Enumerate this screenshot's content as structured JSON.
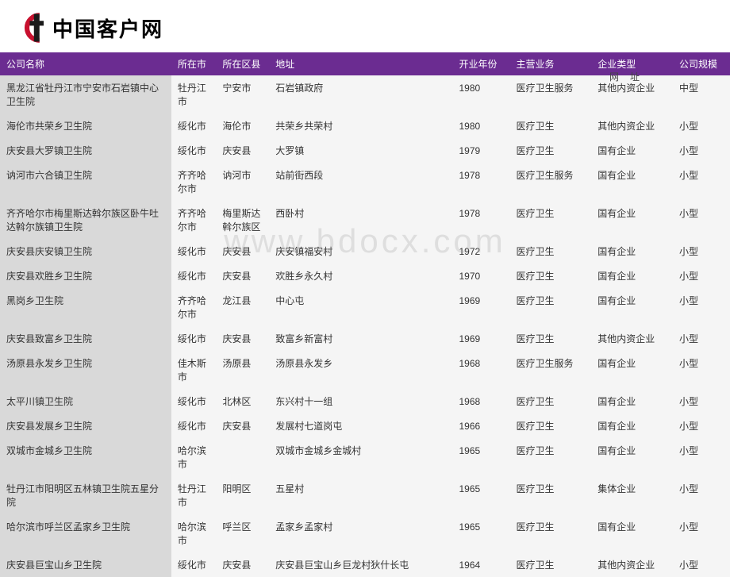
{
  "logo_text": "中国客户网",
  "url_label": "网址",
  "watermark": "www.bdocx.com",
  "columns": [
    {
      "key": "name",
      "label": "公司名称",
      "cls": "col-name"
    },
    {
      "key": "city",
      "label": "所在市",
      "cls": "col-city"
    },
    {
      "key": "district",
      "label": "所在区县",
      "cls": "col-district"
    },
    {
      "key": "addr",
      "label": "地址",
      "cls": "col-addr"
    },
    {
      "key": "year",
      "label": "开业年份",
      "cls": "col-year"
    },
    {
      "key": "biz",
      "label": "主营业务",
      "cls": "col-biz"
    },
    {
      "key": "type",
      "label": "企业类型",
      "cls": "col-type"
    },
    {
      "key": "scale",
      "label": "公司规模",
      "cls": "col-scale"
    }
  ],
  "rows": [
    {
      "name": "黑龙江省牡丹江市宁安市石岩镇中心卫生院",
      "city": "牡丹江市",
      "district": "宁安市",
      "addr": "石岩镇政府",
      "year": "1980",
      "biz": "医疗卫生服务",
      "type": "其他内资企业",
      "scale": "中型"
    },
    {
      "name": "海伦市共荣乡卫生院",
      "city": "绥化市",
      "district": "海伦市",
      "addr": "共荣乡共荣村",
      "year": "1980",
      "biz": "医疗卫生",
      "type": "其他内资企业",
      "scale": "小型"
    },
    {
      "name": "庆安县大罗镇卫生院",
      "city": "绥化市",
      "district": "庆安县",
      "addr": "大罗镇",
      "year": "1979",
      "biz": "医疗卫生",
      "type": "国有企业",
      "scale": "小型"
    },
    {
      "name": "讷河市六合镇卫生院",
      "city": "齐齐哈尔市",
      "district": "讷河市",
      "addr": "站前街西段",
      "year": "1978",
      "biz": "医疗卫生服务",
      "type": "国有企业",
      "scale": "小型"
    },
    {
      "name": "齐齐哈尔市梅里斯达斡尔族区卧牛吐达斡尔族镇卫生院",
      "city": "齐齐哈尔市",
      "district": "梅里斯达斡尔族区",
      "addr": "西卧村",
      "year": "1978",
      "biz": "医疗卫生",
      "type": "国有企业",
      "scale": "小型"
    },
    {
      "name": "庆安县庆安镇卫生院",
      "city": "绥化市",
      "district": "庆安县",
      "addr": "庆安镇福安村",
      "year": "1972",
      "biz": "医疗卫生",
      "type": "国有企业",
      "scale": "小型"
    },
    {
      "name": "庆安县欢胜乡卫生院",
      "city": "绥化市",
      "district": "庆安县",
      "addr": "欢胜乡永久村",
      "year": "1970",
      "biz": "医疗卫生",
      "type": "国有企业",
      "scale": "小型"
    },
    {
      "name": "黑岗乡卫生院",
      "city": "齐齐哈尔市",
      "district": "龙江县",
      "addr": "中心屯",
      "year": "1969",
      "biz": "医疗卫生",
      "type": "国有企业",
      "scale": "小型"
    },
    {
      "name": "庆安县致富乡卫生院",
      "city": "绥化市",
      "district": "庆安县",
      "addr": "致富乡新富村",
      "year": "1969",
      "biz": "医疗卫生",
      "type": "其他内资企业",
      "scale": "小型"
    },
    {
      "name": "汤原县永发乡卫生院",
      "city": "佳木斯市",
      "district": "汤原县",
      "addr": "汤原县永发乡",
      "year": "1968",
      "biz": "医疗卫生服务",
      "type": "国有企业",
      "scale": "小型"
    },
    {
      "name": "太平川镇卫生院",
      "city": "绥化市",
      "district": "北林区",
      "addr": "东兴村十一组",
      "year": "1968",
      "biz": "医疗卫生",
      "type": "国有企业",
      "scale": "小型"
    },
    {
      "name": "庆安县发展乡卫生院",
      "city": "绥化市",
      "district": "庆安县",
      "addr": "发展村七道岗屯",
      "year": "1966",
      "biz": "医疗卫生",
      "type": "国有企业",
      "scale": "小型"
    },
    {
      "name": "双城市金城乡卫生院",
      "city": "哈尔滨市",
      "district": "",
      "addr": "双城市金城乡金城村",
      "year": "1965",
      "biz": "医疗卫生",
      "type": "国有企业",
      "scale": "小型"
    },
    {
      "name": "牡丹江市阳明区五林镇卫生院五星分院",
      "city": "牡丹江市",
      "district": "阳明区",
      "addr": "五星村",
      "year": "1965",
      "biz": "医疗卫生",
      "type": "集体企业",
      "scale": "小型"
    },
    {
      "name": "哈尔滨市呼兰区孟家乡卫生院",
      "city": "哈尔滨市",
      "district": "呼兰区",
      "addr": "孟家乡孟家村",
      "year": "1965",
      "biz": "医疗卫生",
      "type": "国有企业",
      "scale": "小型"
    },
    {
      "name": "庆安县巨宝山乡卫生院",
      "city": "绥化市",
      "district": "庆安县",
      "addr": "庆安县巨宝山乡巨龙村狄什长屯",
      "year": "1964",
      "biz": "医疗卫生",
      "type": "其他内资企业",
      "scale": "小型"
    }
  ]
}
